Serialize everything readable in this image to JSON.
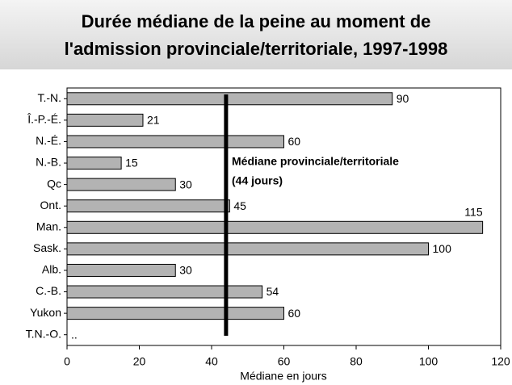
{
  "chart_data": {
    "type": "bar",
    "orientation": "horizontal",
    "title_lines": [
      "Durée médiane de la peine au moment de",
      "l'admission provinciale/territoriale, 1997-1998"
    ],
    "categories": [
      "T.-N.",
      "Î.-P.-É.",
      "N.-É.",
      "N.-B.",
      "Qc",
      "Ont.",
      "Man.",
      "Sask.",
      "Alb.",
      "C.-B.",
      "Yukon",
      "T.N.-O."
    ],
    "values": [
      90,
      21,
      60,
      15,
      30,
      45,
      115,
      100,
      30,
      54,
      60,
      null
    ],
    "value_labels": [
      "90",
      "21",
      "60",
      "15",
      "30",
      "45",
      "115",
      "100",
      "30",
      "54",
      "60",
      ".."
    ],
    "color": "#b3b3b3",
    "xlim": [
      0,
      120
    ],
    "xticks": [
      0,
      20,
      40,
      60,
      80,
      100,
      120
    ],
    "xlabel": "Médiane en jours",
    "median": 44,
    "annotation_lines": [
      "Médiane provinciale/territoriale",
      "(44 jours)"
    ],
    "grid": false
  }
}
